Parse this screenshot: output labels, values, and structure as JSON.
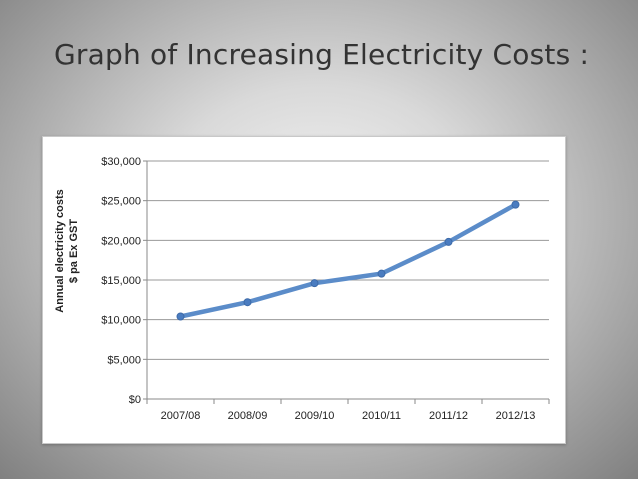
{
  "slide": {
    "title": "Graph of Increasing Electricity Costs :"
  },
  "chart_data": {
    "type": "line",
    "title": "",
    "xlabel": "",
    "ylabel": [
      "Annual electricity costs",
      "$ pa Ex GST"
    ],
    "categories": [
      "2007/08",
      "2008/09",
      "2009/10",
      "2010/11",
      "2011/12",
      "2012/13"
    ],
    "series": [
      {
        "values": [
          10400,
          12200,
          14600,
          15800,
          19800,
          24500
        ],
        "color": "#5b8cc9"
      }
    ],
    "ylim": [
      0,
      30000
    ],
    "yticks": [
      0,
      5000,
      10000,
      15000,
      20000,
      25000,
      30000
    ],
    "ytick_labels": [
      "$0",
      "$5,000",
      "$10,000",
      "$15,000",
      "$20,000",
      "$25,000",
      "$30,000"
    ],
    "grid": true,
    "legend": "none"
  }
}
